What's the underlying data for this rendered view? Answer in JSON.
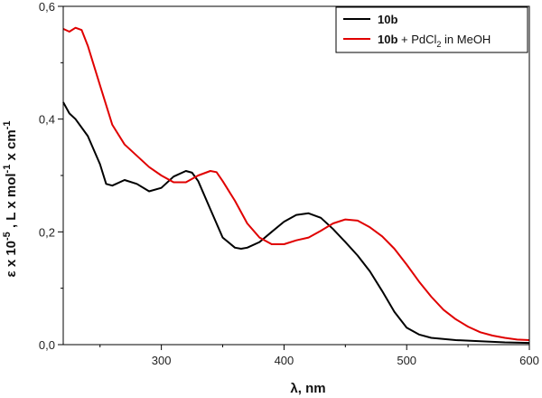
{
  "chart_data": {
    "type": "line",
    "title": "",
    "xlabel": "λ, nm",
    "ylabel": "ε x 10⁻⁵ , L x mol⁻¹ x cm⁻¹",
    "ylabel_parts": {
      "eps": "ε x 10",
      "eps_exp": "-5",
      "sep": " , L x mol",
      "mol_exp": "-1",
      "cm": " x cm",
      "cm_exp": "-1"
    },
    "xlim": [
      220,
      600
    ],
    "ylim": [
      0.0,
      0.6
    ],
    "x_ticks": [
      300,
      400,
      500,
      600
    ],
    "x_tick_labels": [
      "300",
      "400",
      "500",
      "600"
    ],
    "y_ticks": [
      0.0,
      0.2,
      0.4,
      0.6
    ],
    "y_tick_labels": [
      "0,0",
      "0,2",
      "0,4",
      "0,6"
    ],
    "grid": false,
    "legend_position": "top-right",
    "series": [
      {
        "name": "10b",
        "legend": {
          "bold": "10b",
          "rest": "",
          "sub": "",
          "tail": ""
        },
        "color": "#000000",
        "x": [
          220,
          225,
          230,
          240,
          250,
          255,
          260,
          270,
          280,
          290,
          300,
          310,
          320,
          325,
          330,
          340,
          350,
          360,
          365,
          370,
          380,
          390,
          400,
          410,
          420,
          430,
          440,
          450,
          460,
          470,
          480,
          490,
          500,
          510,
          520,
          540,
          560,
          580,
          600
        ],
        "y": [
          0.43,
          0.41,
          0.4,
          0.37,
          0.32,
          0.285,
          0.282,
          0.292,
          0.285,
          0.272,
          0.278,
          0.298,
          0.308,
          0.305,
          0.29,
          0.24,
          0.19,
          0.172,
          0.17,
          0.172,
          0.182,
          0.2,
          0.218,
          0.23,
          0.233,
          0.225,
          0.205,
          0.182,
          0.158,
          0.13,
          0.095,
          0.058,
          0.03,
          0.018,
          0.012,
          0.008,
          0.006,
          0.004,
          0.003
        ]
      },
      {
        "name": "10b + PdCl2 in MeOH",
        "legend": {
          "bold": "10b",
          "rest": " + PdCl",
          "sub": "2",
          "tail": " in MeOH"
        },
        "color": "#e00000",
        "x": [
          220,
          225,
          230,
          235,
          240,
          250,
          260,
          270,
          280,
          290,
          300,
          310,
          320,
          330,
          340,
          345,
          350,
          360,
          370,
          380,
          390,
          400,
          410,
          420,
          430,
          440,
          450,
          460,
          470,
          480,
          490,
          500,
          510,
          520,
          530,
          540,
          550,
          560,
          570,
          580,
          590,
          600
        ],
        "y": [
          0.56,
          0.555,
          0.562,
          0.558,
          0.53,
          0.46,
          0.39,
          0.355,
          0.335,
          0.315,
          0.3,
          0.288,
          0.288,
          0.3,
          0.308,
          0.306,
          0.29,
          0.255,
          0.215,
          0.19,
          0.178,
          0.178,
          0.185,
          0.19,
          0.202,
          0.215,
          0.222,
          0.22,
          0.208,
          0.192,
          0.17,
          0.142,
          0.112,
          0.085,
          0.062,
          0.045,
          0.032,
          0.022,
          0.016,
          0.012,
          0.009,
          0.008
        ]
      }
    ]
  }
}
